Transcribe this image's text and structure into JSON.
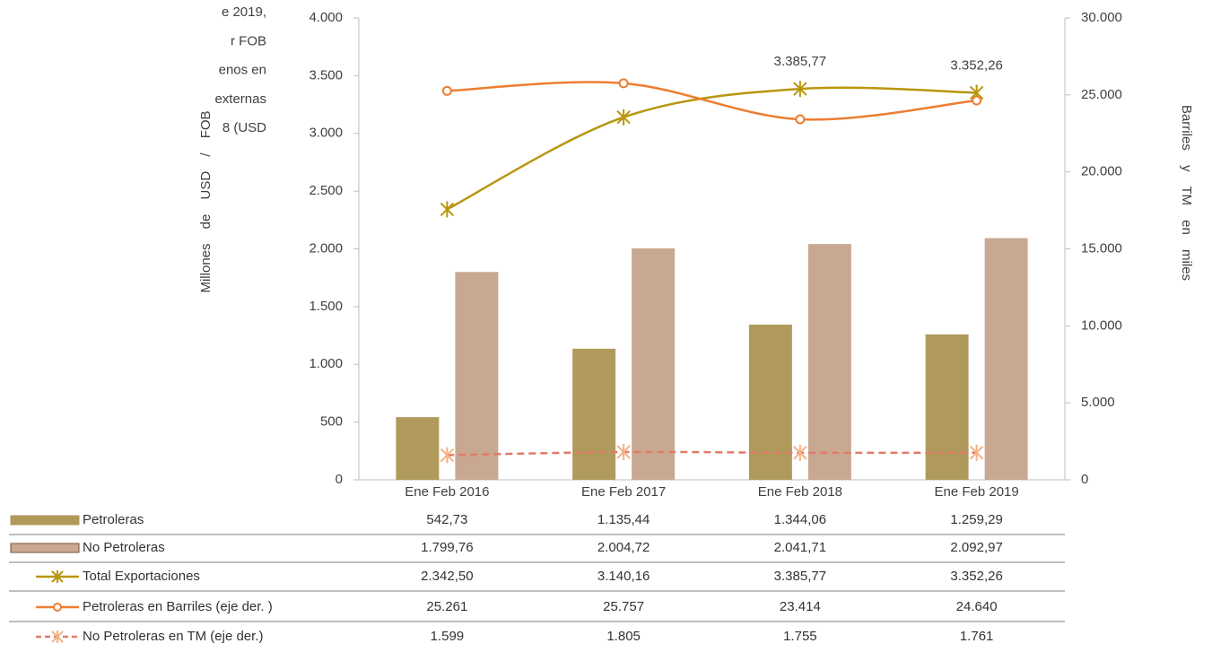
{
  "intro_text": [
    "e 2019,",
    "r FOB",
    "enos en",
    "externas",
    "8 (USD"
  ],
  "chart_data": {
    "type": "bar",
    "ylabel": "Millones de USD / FOB",
    "y2label": "Barriles y TM en miles",
    "categories": [
      "Ene Feb 2016",
      "Ene Feb 2017",
      "Ene Feb 2018",
      "Ene Feb 2019"
    ],
    "ylim": [
      0,
      4000
    ],
    "yticks": [
      0,
      500,
      {
        "value": 1000,
        "label": "1.000"
      },
      {
        "value": 1500,
        "label": "1.500"
      },
      {
        "value": 2000,
        "label": "2.000"
      },
      {
        "value": 2500,
        "label": "2.500"
      },
      {
        "value": 3000,
        "label": "3.000"
      },
      {
        "value": 3500,
        "label": "3.500"
      },
      {
        "value": 4000,
        "label": "4.000"
      }
    ],
    "y2lim": [
      0,
      30000
    ],
    "y2ticks": [
      0,
      {
        "value": 5000,
        "label": "5.000"
      },
      {
        "value": 10000,
        "label": "10.000"
      },
      {
        "value": 15000,
        "label": "15.000"
      },
      {
        "value": 20000,
        "label": "20.000"
      },
      {
        "value": 25000,
        "label": "25.000"
      },
      {
        "value": 30000,
        "label": "30.000"
      }
    ],
    "series": [
      {
        "name": "Petroleras",
        "type": "bar",
        "color": "#b09a5b",
        "values": [
          542.73,
          1135.44,
          1344.06,
          1259.29
        ],
        "value_labels": [
          "542,73",
          "1.135,44",
          "1.344,06",
          "1.259,29"
        ]
      },
      {
        "name": "No Petroleras",
        "type": "bar",
        "color": "#c9a891",
        "values": [
          1799.76,
          2004.72,
          2041.71,
          2092.97
        ],
        "value_labels": [
          "1.799,76",
          "2.004,72",
          "2.041,71",
          "2.092,97"
        ]
      },
      {
        "name": "Total Exportaciones",
        "type": "line",
        "marker": "star",
        "color": "#b8960c",
        "values": [
          2342.5,
          3140.16,
          3385.77,
          3352.26
        ],
        "value_labels": [
          "2.342,50",
          "3.140,16",
          "3.385,77",
          "3.352,26"
        ],
        "labeled_points": [
          2,
          3
        ]
      },
      {
        "name": "Petroleras en Barriles (eje der. )",
        "type": "line",
        "marker": "circle",
        "axis": "y2",
        "color": "#ed7d31",
        "values": [
          25261,
          25757,
          23414,
          24640
        ],
        "value_labels": [
          "25.261",
          "25.757",
          "23.414",
          "24.640"
        ]
      },
      {
        "name": "No Petroleras en TM (eje der.)",
        "type": "line",
        "marker": "star",
        "dashed": true,
        "axis": "y2",
        "color": "#e07b6a",
        "marker_color": "#f4b183",
        "values": [
          1599,
          1805,
          1755,
          1761
        ],
        "value_labels": [
          "1.599",
          "1.805",
          "1.755",
          "1.761"
        ]
      }
    ]
  }
}
